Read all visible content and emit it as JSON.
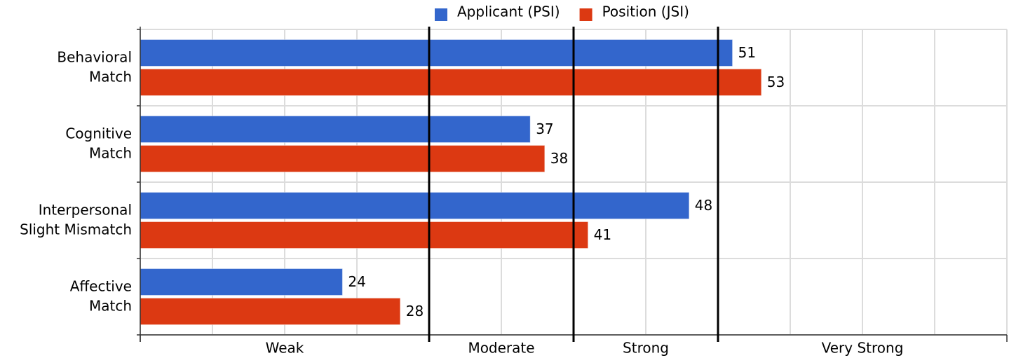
{
  "chart_data": {
    "type": "bar",
    "orientation": "horizontal",
    "categories": [
      [
        "Behavioral",
        "Match"
      ],
      [
        "Cognitive",
        "Match"
      ],
      [
        "Interpersonal",
        "Slight Mismatch"
      ],
      [
        "Affective",
        "Match"
      ]
    ],
    "series": [
      {
        "name": "Applicant (PSI)",
        "color": "#3366cc",
        "values": [
          51,
          37,
          48,
          24
        ]
      },
      {
        "name": "Position (JSI)",
        "color": "#dc3912",
        "values": [
          53,
          38,
          41,
          28
        ]
      }
    ],
    "xlim": [
      10,
      70
    ],
    "xgrid": [
      10,
      15,
      20,
      25,
      30,
      35,
      40,
      45,
      50,
      55,
      60,
      65,
      70
    ],
    "zones": [
      {
        "label": "Weak",
        "from": 10,
        "to": 30
      },
      {
        "label": "Moderate",
        "from": 30,
        "to": 40
      },
      {
        "label": "Strong",
        "from": 40,
        "to": 50
      },
      {
        "label": "Very Strong",
        "from": 50,
        "to": 70
      }
    ],
    "grid": true,
    "legend": "top"
  }
}
